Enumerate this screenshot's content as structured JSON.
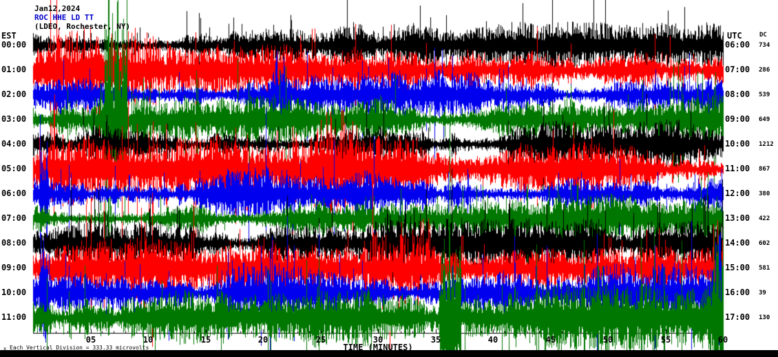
{
  "header": {
    "date": "Jan12,2024",
    "station": "ROC HHE LD TT",
    "location": "(LDEO, Rochester, NY)"
  },
  "axes": {
    "left_label": "EST",
    "right_label": "UTC",
    "dc_label": "DC",
    "xlabel": "TIME (MINUTES)",
    "x_ticks": [
      "05",
      "10",
      "15",
      "20",
      "25",
      "30",
      "35",
      "40",
      "45",
      "50",
      "55",
      "60"
    ]
  },
  "footer": {
    "marker": "x",
    "scale_note": "Each Vertical Division =  333.33 microvolts"
  },
  "chart_data": {
    "type": "line",
    "description": "12-row helicorder seismogram, one 60-minute trace per hour row",
    "x_range": [
      0,
      60
    ],
    "xlabel": "TIME (MINUTES)",
    "colors_cycle": [
      "#000000",
      "#ff0000",
      "#0000ee",
      "#007700"
    ],
    "rows": [
      {
        "est": "00:00",
        "utc": "06:00",
        "dc": "734",
        "color": "#000000",
        "amp": 14
      },
      {
        "est": "01:00",
        "utc": "07:00",
        "dc": "286",
        "color": "#ff0000",
        "amp": 20
      },
      {
        "est": "02:00",
        "utc": "08:00",
        "dc": "539",
        "color": "#0000ee",
        "amp": 16
      },
      {
        "est": "03:00",
        "utc": "09:00",
        "dc": "649",
        "color": "#007700",
        "amp": 15
      },
      {
        "est": "04:00",
        "utc": "10:00",
        "dc": "1212",
        "color": "#000000",
        "amp": 15
      },
      {
        "est": "05:00",
        "utc": "11:00",
        "dc": "867",
        "color": "#ff0000",
        "amp": 21
      },
      {
        "est": "06:00",
        "utc": "12:00",
        "dc": "380",
        "color": "#0000ee",
        "amp": 16
      },
      {
        "est": "07:00",
        "utc": "13:00",
        "dc": "422",
        "color": "#007700",
        "amp": 15
      },
      {
        "est": "08:00",
        "utc": "14:00",
        "dc": "602",
        "color": "#000000",
        "amp": 15
      },
      {
        "est": "09:00",
        "utc": "15:00",
        "dc": "581",
        "color": "#ff0000",
        "amp": 19
      },
      {
        "est": "10:00",
        "utc": "16:00",
        "dc": "39",
        "color": "#0000ee",
        "amp": 18
      },
      {
        "est": "11:00",
        "utc": "17:00",
        "dc": "130",
        "color": "#007700",
        "amp": 21
      }
    ],
    "events": [
      {
        "row": 3,
        "start_min": 5.0,
        "end_min": 10.0,
        "mult": 2.0
      },
      {
        "row": 3,
        "start_min": 6.2,
        "end_min": 8.2,
        "mult": 9.0
      },
      {
        "row": 1,
        "start_min": 1.0,
        "end_min": 12.0,
        "mult": 1.7
      },
      {
        "row": 2,
        "start_min": 20.5,
        "end_min": 22.0,
        "mult": 3.0
      },
      {
        "row": 5,
        "start_min": 22.0,
        "end_min": 28.0,
        "mult": 1.7
      },
      {
        "row": 6,
        "start_min": 0.5,
        "end_min": 1.3,
        "mult": 3.5
      },
      {
        "row": 8,
        "start_min": 30.5,
        "end_min": 33.0,
        "mult": 1.6
      },
      {
        "row": 9,
        "start_min": 29.5,
        "end_min": 34.5,
        "mult": 2.4
      },
      {
        "row": 10,
        "start_min": 0.5,
        "end_min": 1.5,
        "mult": 4.0
      },
      {
        "row": 4,
        "start_min": 36.3,
        "end_min": 37.0,
        "mult": 3.0
      },
      {
        "row": 11,
        "start_min": 35.3,
        "end_min": 37.2,
        "mult": 8.0
      },
      {
        "row": 10,
        "start_min": 59.2,
        "end_min": 60.0,
        "mult": 3.0
      },
      {
        "row": 11,
        "start_min": 59.0,
        "end_min": 60.0,
        "mult": 4.0
      }
    ]
  }
}
